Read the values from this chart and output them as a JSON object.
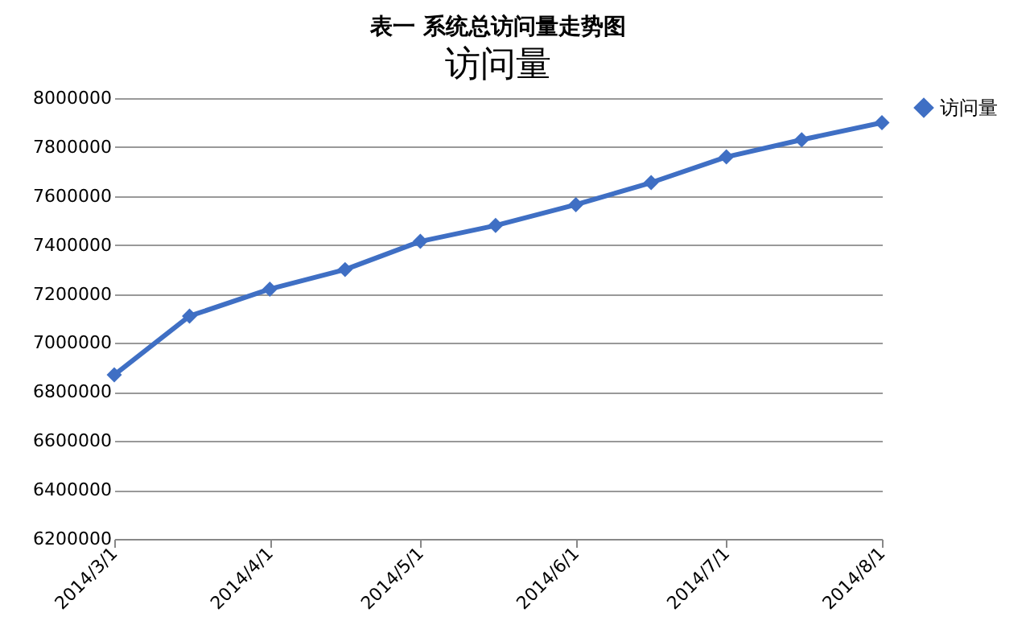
{
  "chart_data": {
    "type": "line",
    "title": "表一 系统总访问量走势图",
    "subtitle": "访问量",
    "x": [
      "2014-03-01",
      "2014-03-16",
      "2014-04-01",
      "2014-04-16",
      "2014-05-01",
      "2014-05-16",
      "2014-06-01",
      "2014-06-16",
      "2014-07-01",
      "2014-07-16",
      "2014-08-01"
    ],
    "series": [
      {
        "name": "访问量",
        "color": "#3f6fc4",
        "values": [
          6870000,
          7110000,
          7220000,
          7300000,
          7415000,
          7480000,
          7565000,
          7655000,
          7760000,
          7830000,
          7900000
        ]
      }
    ],
    "xlim": [
      "2014-03-01",
      "2014-08-01"
    ],
    "xticks": [
      {
        "value": "2014-03-01",
        "label": "2014/3/1"
      },
      {
        "value": "2014-04-01",
        "label": "2014/4/1"
      },
      {
        "value": "2014-05-01",
        "label": "2014/5/1"
      },
      {
        "value": "2014-06-01",
        "label": "2014/6/1"
      },
      {
        "value": "2014-07-01",
        "label": "2014/7/1"
      },
      {
        "value": "2014-08-01",
        "label": "2014/8/1"
      }
    ],
    "ylim": [
      6200000,
      8000000
    ],
    "yticks": [
      6200000,
      6400000,
      6600000,
      6800000,
      7000000,
      7200000,
      7400000,
      7600000,
      7800000,
      8000000
    ],
    "grid": "y",
    "legend": "right",
    "marker": "diamond",
    "line_style": "solid"
  }
}
